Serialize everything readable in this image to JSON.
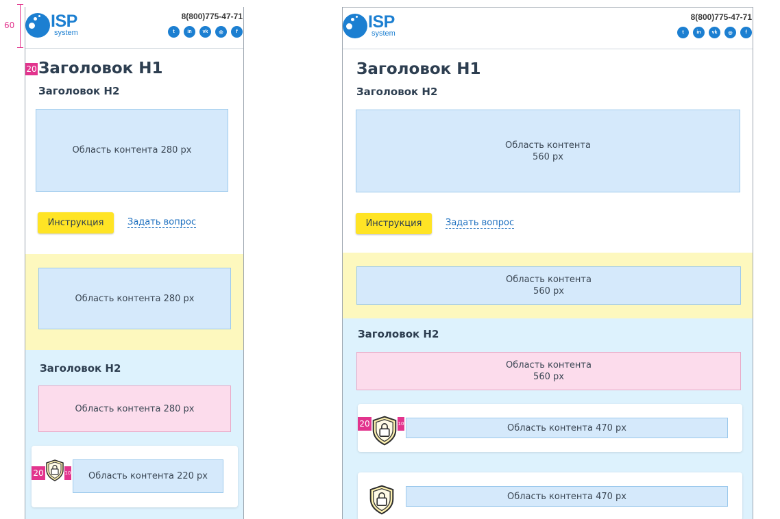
{
  "annotation": {
    "header_height": "60"
  },
  "header": {
    "logo_isp": "ISP",
    "logo_system": "system",
    "phone": "8(800)775-47-71",
    "socials": [
      {
        "icon": "twitter-icon",
        "glyph": "t"
      },
      {
        "icon": "linkedin-icon",
        "glyph": "in"
      },
      {
        "icon": "vk-icon",
        "glyph": "vk"
      },
      {
        "icon": "instagram-icon",
        "glyph": "◎"
      },
      {
        "icon": "facebook-icon",
        "glyph": "f"
      }
    ]
  },
  "mobile": {
    "h1": "Заголовок H1",
    "h1_margin_marker": "20",
    "h2_first": "Заголовок H2",
    "content_1": "Область контента 280 px",
    "button_label": "Инструкция",
    "link_label": "Задать вопрос",
    "yellow_content": "Область контента 280 px",
    "h2_second": "Заголовок H2",
    "pink_content": "Область контента 280 px",
    "card_content": "Область контента 220 px",
    "card_marker_left": "20",
    "card_marker_right": "10"
  },
  "desktop": {
    "h1": "Заголовок H1",
    "h2_first": "Заголовок H2",
    "content_1_line1": "Область контента",
    "content_1_line2": "560 px",
    "button_label": "Инструкция",
    "link_label": "Задать вопрос",
    "yellow_content_line1": "Область контента",
    "yellow_content_line2": "560 px",
    "h2_second": "Заголовок H2",
    "pink_content_line1": "Область контента",
    "pink_content_line2": "560 px",
    "card1_content": "Область контента 470 px",
    "card1_marker_left": "20",
    "card1_marker_right": "10",
    "card2_content": "Область контента 470 px"
  },
  "colors": {
    "brand_blue": "#1c7fd1",
    "button_yellow": "#ffe425",
    "band_yellow": "#fdf8be",
    "band_blue": "#ddf2fd",
    "content_blue": "#d5e9fb",
    "content_pink": "#fcdcec",
    "marker_pink": "#e2348d"
  }
}
